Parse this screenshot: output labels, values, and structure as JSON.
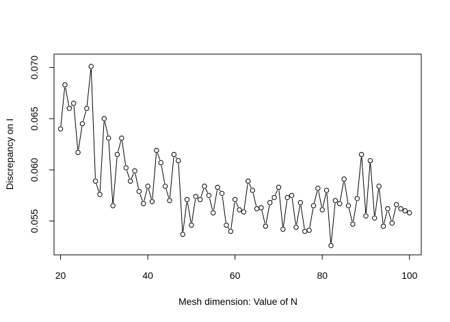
{
  "chart_data": {
    "type": "line",
    "title": "",
    "xlabel": "Mesh dimension: Value of N",
    "ylabel": "Discrepancy on I",
    "xlim": [
      18.5,
      102.7
    ],
    "ylim": [
      0.0517,
      0.0713
    ],
    "x_ticks": [
      20,
      40,
      60,
      80,
      100
    ],
    "x_tick_labels": [
      "20",
      "40",
      "60",
      "80",
      "100"
    ],
    "y_ticks": [
      0.055,
      0.06,
      0.065,
      0.07
    ],
    "y_tick_labels": [
      "0.055",
      "0.060",
      "0.065",
      "0.070"
    ],
    "grid": false,
    "legend": "none",
    "marker": "open-circle",
    "line_color": "#000000",
    "series": [
      {
        "x": [
          20,
          21,
          22,
          23,
          24,
          25,
          26,
          27,
          28,
          29,
          30,
          31,
          32,
          33,
          34,
          35,
          36,
          37,
          38,
          39,
          40,
          41,
          42,
          43,
          44,
          45,
          46,
          47,
          48,
          49,
          50,
          51,
          52,
          53,
          54,
          55,
          56,
          57,
          58,
          59,
          60,
          61,
          62,
          63,
          64,
          65,
          66,
          67,
          68,
          69,
          70,
          71,
          72,
          73,
          74,
          75,
          76,
          77,
          78,
          79,
          80,
          81,
          82,
          83,
          84,
          85,
          86,
          87,
          88,
          89,
          90,
          91,
          92,
          93,
          94,
          95,
          96,
          97,
          98,
          99,
          100
        ],
        "values": [
          0.064,
          0.0683,
          0.066,
          0.0665,
          0.0617,
          0.0645,
          0.066,
          0.0701,
          0.0589,
          0.0576,
          0.065,
          0.0631,
          0.0565,
          0.0615,
          0.0631,
          0.0602,
          0.0589,
          0.0599,
          0.0579,
          0.0567,
          0.0584,
          0.0569,
          0.0619,
          0.0607,
          0.0584,
          0.057,
          0.0615,
          0.0609,
          0.0537,
          0.0571,
          0.0546,
          0.0574,
          0.0571,
          0.0584,
          0.0575,
          0.0558,
          0.0583,
          0.0577,
          0.0546,
          0.054,
          0.0571,
          0.0561,
          0.0559,
          0.0589,
          0.058,
          0.0562,
          0.0563,
          0.0545,
          0.0568,
          0.0573,
          0.0583,
          0.0542,
          0.0573,
          0.0575,
          0.0544,
          0.0568,
          0.054,
          0.0541,
          0.0565,
          0.0582,
          0.0561,
          0.058,
          0.0526,
          0.057,
          0.0567,
          0.0591,
          0.0565,
          0.0547,
          0.0572,
          0.0615,
          0.0555,
          0.0609,
          0.0553,
          0.0584,
          0.0545,
          0.0562,
          0.0548,
          0.0566,
          0.0562,
          0.056,
          0.0558
        ]
      }
    ]
  }
}
